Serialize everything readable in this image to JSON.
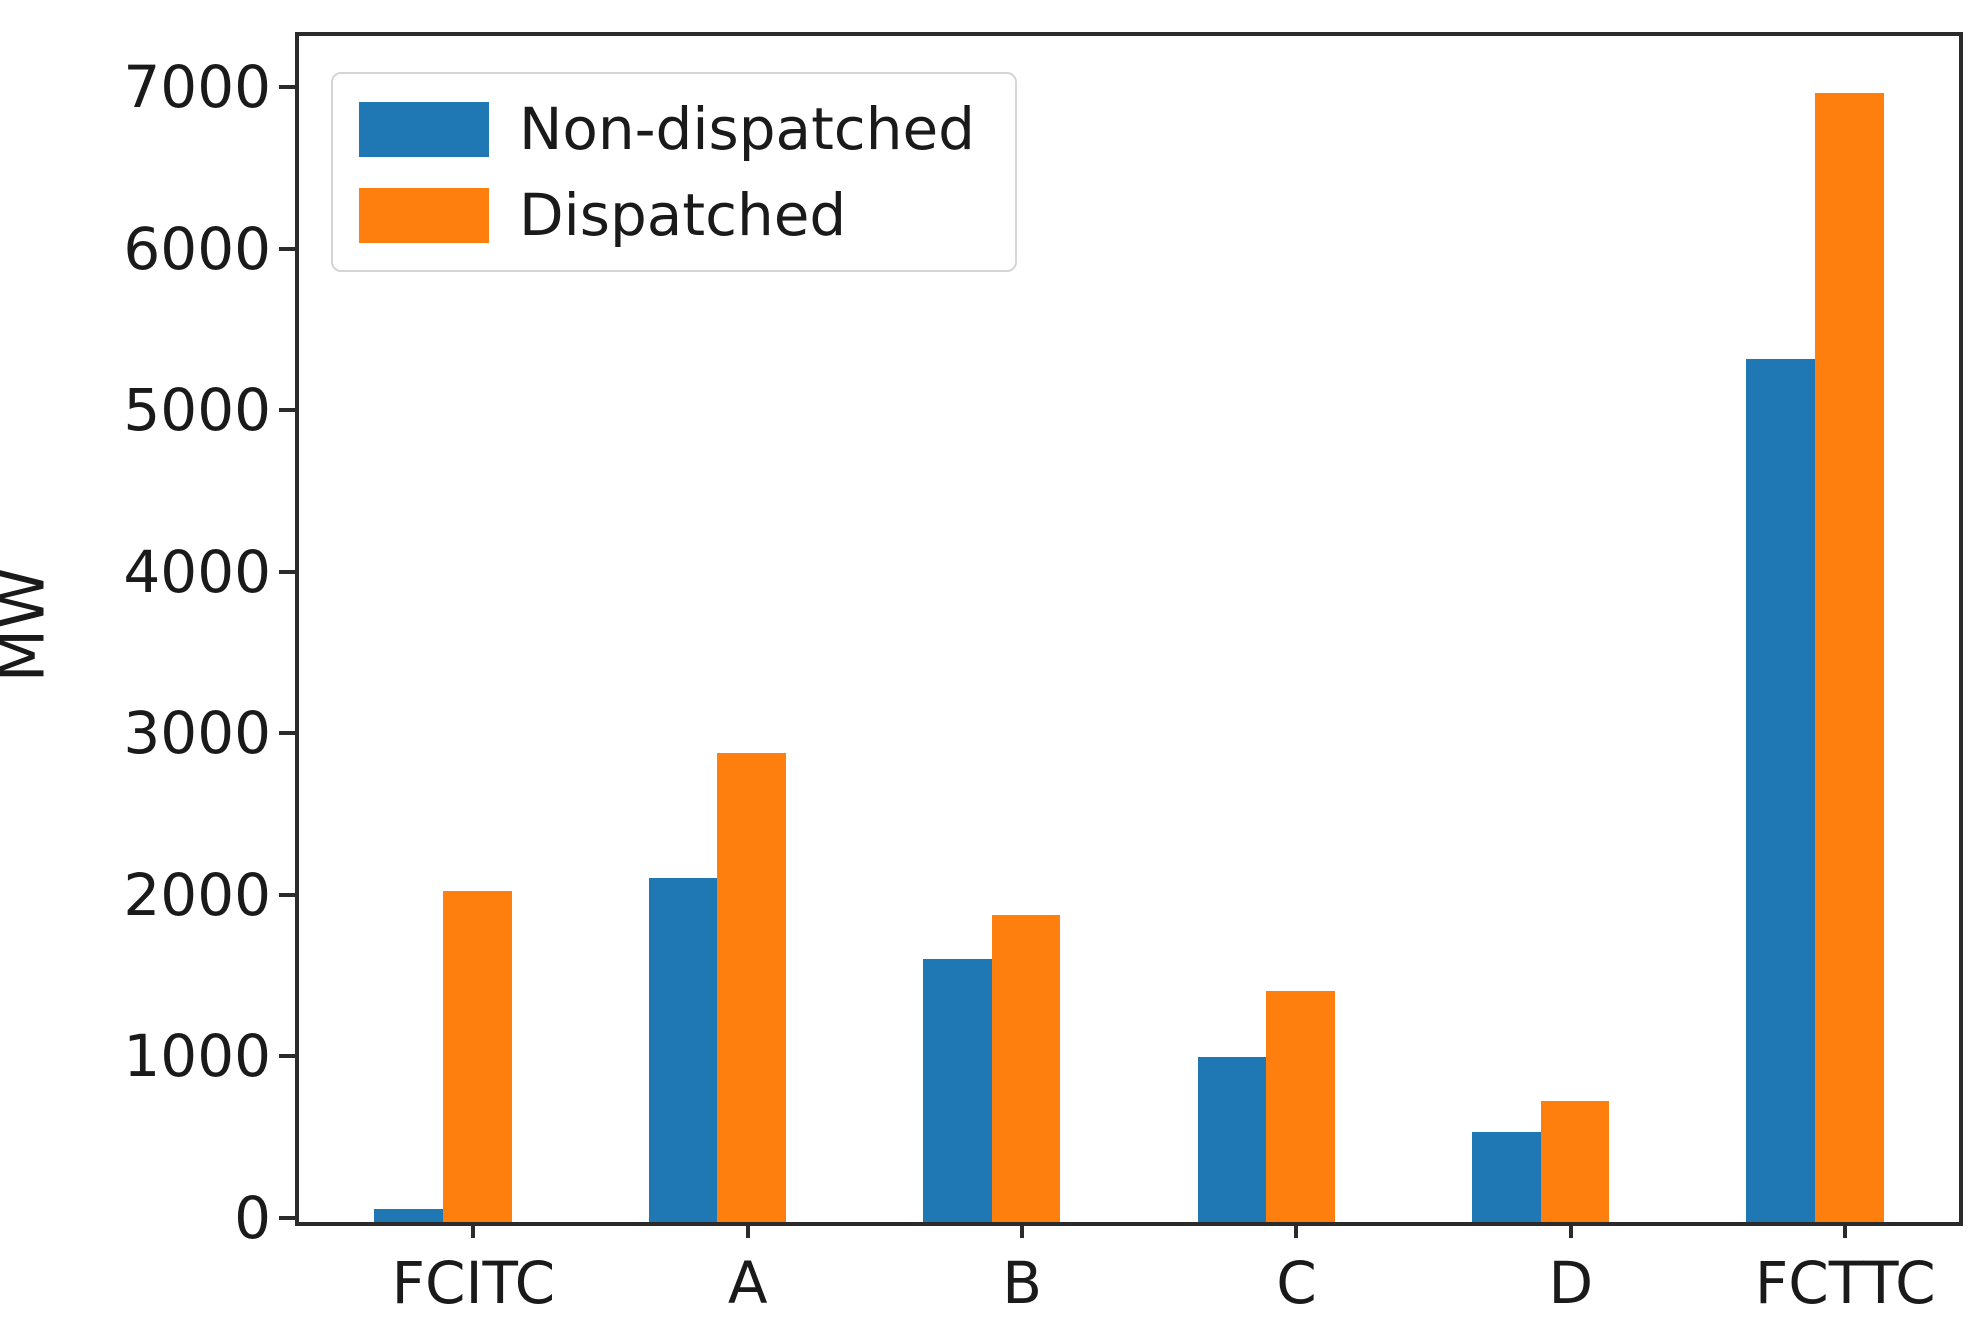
{
  "figure": {
    "background": "#ffffff",
    "ylabel": "MW"
  },
  "legend": {
    "position": "upper left",
    "items": [
      {
        "label": "Non-dispatched",
        "color": "#1f77b4"
      },
      {
        "label": "Dispatched",
        "color": "#ff7f0e"
      }
    ]
  },
  "chart_data": {
    "type": "bar",
    "title": "",
    "xlabel": "",
    "ylabel": "MW",
    "categories": [
      "FCITC",
      "A",
      "B",
      "C",
      "D",
      "FCTTC"
    ],
    "series": [
      {
        "name": "Non-dispatched",
        "color": "#1f77b4",
        "values": [
          80,
          2130,
          1630,
          1020,
          560,
          5340
        ]
      },
      {
        "name": "Dispatched",
        "color": "#ff7f0e",
        "values": [
          2050,
          2900,
          1900,
          1430,
          750,
          6990
        ]
      }
    ],
    "yticks": [
      0,
      1000,
      2000,
      3000,
      4000,
      5000,
      6000,
      7000
    ],
    "ylim": [
      0,
      7340
    ],
    "grid": false,
    "legend_position": "upper left",
    "bar_width_units": 0.25,
    "series_center_offsets": [
      -0.25,
      0
    ]
  }
}
